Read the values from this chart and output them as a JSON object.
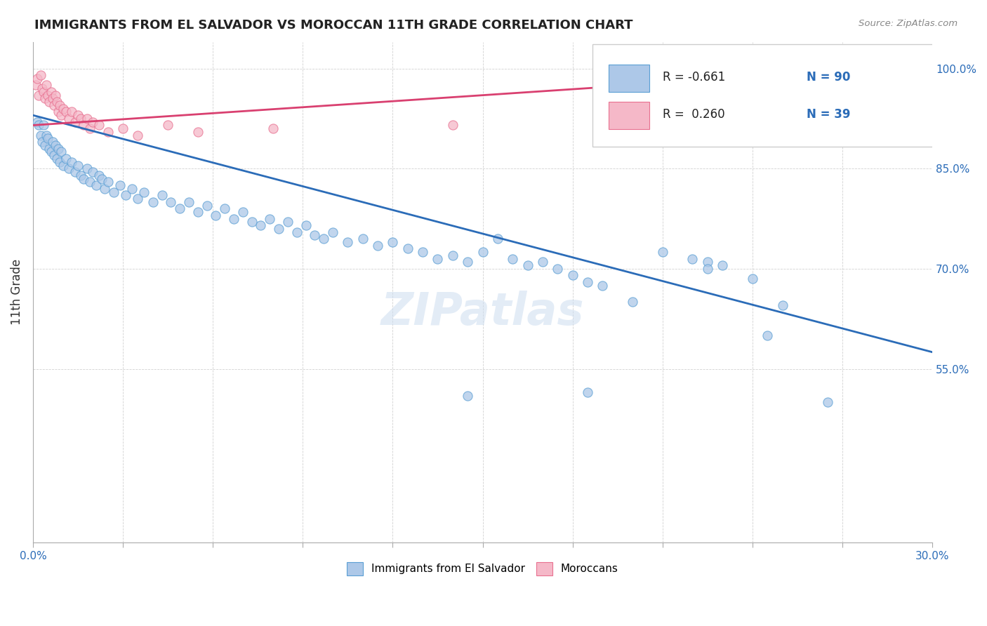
{
  "title": "IMMIGRANTS FROM EL SALVADOR VS MOROCCAN 11TH GRADE CORRELATION CHART",
  "source": "Source: ZipAtlas.com",
  "ylabel": "11th Grade",
  "xlim": [
    0.0,
    30.0
  ],
  "ylim": [
    29.0,
    104.0
  ],
  "yticks": [
    55.0,
    70.0,
    85.0,
    100.0
  ],
  "xticks": [
    0.0,
    3.0,
    6.0,
    9.0,
    12.0,
    15.0,
    18.0,
    21.0,
    24.0,
    27.0,
    30.0
  ],
  "legend_R_blue": "-0.661",
  "legend_N_blue": "90",
  "legend_R_pink": "0.260",
  "legend_N_pink": "39",
  "blue_color": "#adc8e8",
  "blue_edge_color": "#5a9fd4",
  "blue_line_color": "#2b6cb8",
  "pink_color": "#f5b8c8",
  "pink_edge_color": "#e87090",
  "pink_line_color": "#d94070",
  "watermark": "ZIPatlas",
  "blue_scatter": [
    [
      0.15,
      92.0
    ],
    [
      0.2,
      91.5
    ],
    [
      0.25,
      90.0
    ],
    [
      0.3,
      89.0
    ],
    [
      0.35,
      91.5
    ],
    [
      0.4,
      88.5
    ],
    [
      0.45,
      90.0
    ],
    [
      0.5,
      89.5
    ],
    [
      0.55,
      88.0
    ],
    [
      0.6,
      87.5
    ],
    [
      0.65,
      89.0
    ],
    [
      0.7,
      87.0
    ],
    [
      0.75,
      88.5
    ],
    [
      0.8,
      86.5
    ],
    [
      0.85,
      88.0
    ],
    [
      0.9,
      86.0
    ],
    [
      0.95,
      87.5
    ],
    [
      1.0,
      85.5
    ],
    [
      1.1,
      86.5
    ],
    [
      1.2,
      85.0
    ],
    [
      1.3,
      86.0
    ],
    [
      1.4,
      84.5
    ],
    [
      1.5,
      85.5
    ],
    [
      1.6,
      84.0
    ],
    [
      1.7,
      83.5
    ],
    [
      1.8,
      85.0
    ],
    [
      1.9,
      83.0
    ],
    [
      2.0,
      84.5
    ],
    [
      2.1,
      82.5
    ],
    [
      2.2,
      84.0
    ],
    [
      2.3,
      83.5
    ],
    [
      2.4,
      82.0
    ],
    [
      2.5,
      83.0
    ],
    [
      2.7,
      81.5
    ],
    [
      2.9,
      82.5
    ],
    [
      3.1,
      81.0
    ],
    [
      3.3,
      82.0
    ],
    [
      3.5,
      80.5
    ],
    [
      3.7,
      81.5
    ],
    [
      4.0,
      80.0
    ],
    [
      4.3,
      81.0
    ],
    [
      4.6,
      80.0
    ],
    [
      4.9,
      79.0
    ],
    [
      5.2,
      80.0
    ],
    [
      5.5,
      78.5
    ],
    [
      5.8,
      79.5
    ],
    [
      6.1,
      78.0
    ],
    [
      6.4,
      79.0
    ],
    [
      6.7,
      77.5
    ],
    [
      7.0,
      78.5
    ],
    [
      7.3,
      77.0
    ],
    [
      7.6,
      76.5
    ],
    [
      7.9,
      77.5
    ],
    [
      8.2,
      76.0
    ],
    [
      8.5,
      77.0
    ],
    [
      8.8,
      75.5
    ],
    [
      9.1,
      76.5
    ],
    [
      9.4,
      75.0
    ],
    [
      9.7,
      74.5
    ],
    [
      10.0,
      75.5
    ],
    [
      10.5,
      74.0
    ],
    [
      11.0,
      74.5
    ],
    [
      11.5,
      73.5
    ],
    [
      12.0,
      74.0
    ],
    [
      12.5,
      73.0
    ],
    [
      13.0,
      72.5
    ],
    [
      13.5,
      71.5
    ],
    [
      14.0,
      72.0
    ],
    [
      14.5,
      71.0
    ],
    [
      15.0,
      72.5
    ],
    [
      15.5,
      74.5
    ],
    [
      16.0,
      71.5
    ],
    [
      16.5,
      70.5
    ],
    [
      17.0,
      71.0
    ],
    [
      17.5,
      70.0
    ],
    [
      18.0,
      69.0
    ],
    [
      18.5,
      68.0
    ],
    [
      19.0,
      67.5
    ],
    [
      20.0,
      65.0
    ],
    [
      21.0,
      72.5
    ],
    [
      22.0,
      71.5
    ],
    [
      22.5,
      71.0
    ],
    [
      22.5,
      70.0
    ],
    [
      23.0,
      70.5
    ],
    [
      24.0,
      68.5
    ],
    [
      24.5,
      60.0
    ],
    [
      25.0,
      64.5
    ],
    [
      26.5,
      50.0
    ],
    [
      14.5,
      51.0
    ],
    [
      18.5,
      51.5
    ]
  ],
  "pink_scatter": [
    [
      0.1,
      97.5
    ],
    [
      0.15,
      98.5
    ],
    [
      0.2,
      96.0
    ],
    [
      0.25,
      99.0
    ],
    [
      0.3,
      97.0
    ],
    [
      0.35,
      96.5
    ],
    [
      0.4,
      95.5
    ],
    [
      0.45,
      97.5
    ],
    [
      0.5,
      96.0
    ],
    [
      0.55,
      95.0
    ],
    [
      0.6,
      96.5
    ],
    [
      0.65,
      95.5
    ],
    [
      0.7,
      94.5
    ],
    [
      0.75,
      96.0
    ],
    [
      0.8,
      95.0
    ],
    [
      0.85,
      93.5
    ],
    [
      0.9,
      94.5
    ],
    [
      0.95,
      93.0
    ],
    [
      1.0,
      94.0
    ],
    [
      1.1,
      93.5
    ],
    [
      1.2,
      92.5
    ],
    [
      1.3,
      93.5
    ],
    [
      1.4,
      92.0
    ],
    [
      1.5,
      93.0
    ],
    [
      1.6,
      92.5
    ],
    [
      1.7,
      91.5
    ],
    [
      1.8,
      92.5
    ],
    [
      1.9,
      91.0
    ],
    [
      2.0,
      92.0
    ],
    [
      2.2,
      91.5
    ],
    [
      2.5,
      90.5
    ],
    [
      3.0,
      91.0
    ],
    [
      3.5,
      90.0
    ],
    [
      4.5,
      91.5
    ],
    [
      5.5,
      90.5
    ],
    [
      8.0,
      91.0
    ],
    [
      14.0,
      91.5
    ],
    [
      22.0,
      92.5
    ],
    [
      22.5,
      93.0
    ]
  ],
  "blue_trendline": [
    [
      0.0,
      93.0
    ],
    [
      30.0,
      57.5
    ]
  ],
  "pink_trendline": [
    [
      0.0,
      91.5
    ],
    [
      30.0,
      100.5
    ]
  ]
}
